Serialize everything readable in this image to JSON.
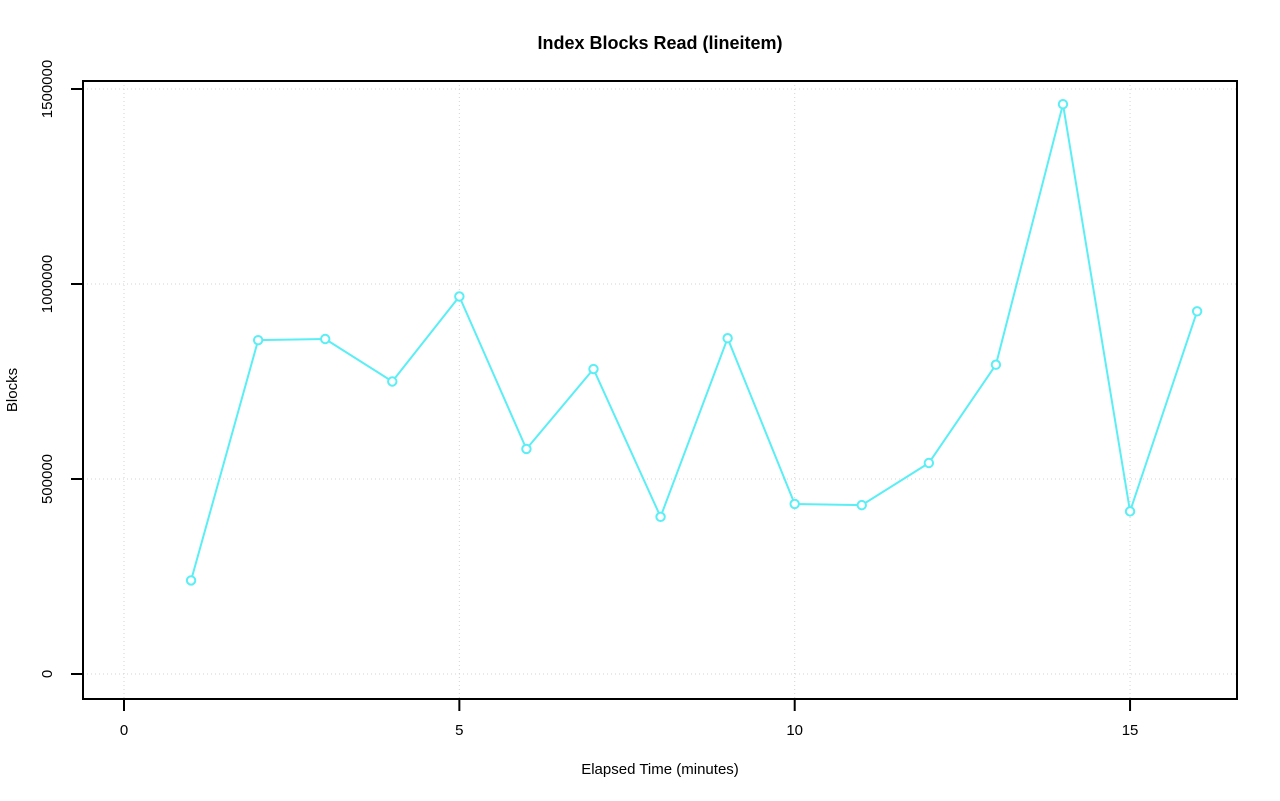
{
  "chart_data": {
    "type": "line",
    "title": "Index Blocks Read (lineitem)",
    "xlabel": "Elapsed Time (minutes)",
    "ylabel": "Blocks",
    "x": [
      1,
      2,
      3,
      4,
      5,
      6,
      7,
      8,
      9,
      10,
      11,
      12,
      13,
      14,
      15,
      16
    ],
    "series": [
      {
        "name": "index-blocks-read",
        "values": [
          240000,
          856000,
          859000,
          750000,
          968000,
          577000,
          782000,
          403000,
          861000,
          436000,
          433000,
          541000,
          793000,
          1461000,
          417000,
          930000
        ]
      }
    ],
    "x_ticks": [
      0,
      5,
      10,
      15
    ],
    "y_ticks": [
      0,
      500000,
      1000000,
      1500000
    ],
    "xlim": [
      -0.6,
      16.6
    ],
    "ylim": [
      -64000,
      1521000
    ],
    "grid": true,
    "grid_style": "dotted",
    "legend_position": "none",
    "marker": "open-circle",
    "line_style": "solid",
    "colors": {
      "series": "#5AEEF5",
      "grid": "#D3D3D3",
      "axis": "#000000",
      "background": "#FFFFFF"
    }
  }
}
